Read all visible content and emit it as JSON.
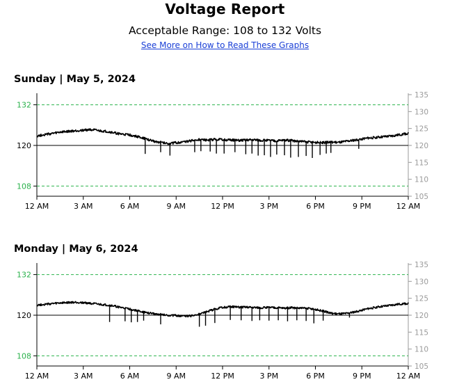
{
  "header": {
    "title": "Voltage Report",
    "subtitle": "Acceptable Range: 108 to 132 Volts",
    "help_link": "See More on How to Read These Graphs"
  },
  "colors": {
    "limit_line": "#2bb24c",
    "nominal_line": "#000000",
    "series": "#000000",
    "right_axis": "#9a9a9a",
    "left_tick": "#2bb24c",
    "link": "#1a3fd6"
  },
  "x_ticks": [
    "12 AM",
    "3 AM",
    "6 AM",
    "9 AM",
    "12 PM",
    "3 PM",
    "6 PM",
    "9 PM",
    "12 AM"
  ],
  "chart_data": [
    {
      "type": "line",
      "title": "Sunday | May 5, 2024",
      "xlabel": "",
      "ylabel": "",
      "ylim": [
        105,
        135
      ],
      "xlim": [
        0,
        24
      ],
      "left_ticks": [
        108,
        120,
        132
      ],
      "right_ticks": [
        105,
        110,
        115,
        120,
        125,
        130,
        135
      ],
      "x_ticks": [
        "12 AM",
        "3 AM",
        "6 AM",
        "9 AM",
        "12 PM",
        "3 PM",
        "6 PM",
        "9 PM",
        "12 AM"
      ],
      "reference_lines": [
        132,
        120,
        108
      ],
      "series": [
        {
          "x": [
            0,
            0.5,
            1,
            1.5,
            2,
            2.5,
            3,
            3.5,
            4,
            4.5,
            5,
            5.5,
            6,
            6.5,
            7,
            7.5,
            8,
            8.5,
            9,
            9.5,
            10,
            10.5,
            11,
            11.5,
            12,
            12.5,
            13,
            13.5,
            14,
            14.5,
            15,
            15.5,
            16,
            16.5,
            17,
            17.5,
            18,
            18.5,
            19,
            19.5,
            20,
            20.5,
            21,
            21.5,
            22,
            22.5,
            23,
            23.5,
            24
          ],
          "values": [
            122.8,
            123.2,
            123.5,
            123.9,
            124.1,
            124.3,
            124.5,
            124.7,
            124.3,
            124.1,
            123.7,
            123.3,
            123.1,
            122.6,
            122.0,
            121.3,
            120.9,
            120.6,
            120.8,
            121.0,
            121.4,
            121.7,
            121.5,
            121.8,
            121.7,
            121.6,
            121.5,
            121.6,
            121.7,
            121.5,
            121.5,
            121.3,
            121.6,
            121.4,
            121.2,
            121.0,
            120.9,
            120.8,
            121.0,
            120.9,
            121.2,
            121.5,
            121.9,
            122.2,
            122.4,
            122.6,
            122.8,
            123.2,
            123.6
          ]
        }
      ],
      "dips": [
        [
          7.0,
          117.5
        ],
        [
          8.0,
          118.0
        ],
        [
          8.6,
          117.0
        ],
        [
          10.2,
          118.0
        ],
        [
          10.6,
          118.3
        ],
        [
          11.2,
          118.2
        ],
        [
          11.6,
          117.6
        ],
        [
          12.1,
          117.6
        ],
        [
          12.8,
          118.0
        ],
        [
          13.5,
          117.4
        ],
        [
          13.9,
          117.6
        ],
        [
          14.3,
          117.0
        ],
        [
          14.7,
          117.1
        ],
        [
          15.1,
          116.6
        ],
        [
          15.5,
          117.3
        ],
        [
          16.0,
          117.1
        ],
        [
          16.4,
          116.4
        ],
        [
          16.9,
          116.6
        ],
        [
          17.4,
          116.9
        ],
        [
          17.8,
          116.3
        ],
        [
          18.3,
          117.2
        ],
        [
          18.7,
          117.6
        ],
        [
          19.0,
          117.8
        ],
        [
          20.8,
          119.0
        ]
      ],
      "noise": 0.35
    },
    {
      "type": "line",
      "title": "Monday | May 6, 2024",
      "xlabel": "",
      "ylabel": "",
      "ylim": [
        105,
        135
      ],
      "xlim": [
        0,
        24
      ],
      "left_ticks": [
        108,
        120,
        132
      ],
      "right_ticks": [
        105,
        110,
        115,
        120,
        125,
        130,
        135
      ],
      "x_ticks": [
        "12 AM",
        "3 AM",
        "6 AM",
        "9 AM",
        "12 PM",
        "3 PM",
        "6 PM",
        "9 PM",
        "12 AM"
      ],
      "reference_lines": [
        132,
        120,
        108
      ],
      "series": [
        {
          "x": [
            0,
            0.5,
            1,
            1.5,
            2,
            2.5,
            3,
            3.5,
            4,
            4.5,
            5,
            5.5,
            6,
            6.5,
            7,
            7.5,
            8,
            8.5,
            9,
            9.5,
            10,
            10.5,
            11,
            11.5,
            12,
            12.5,
            13,
            13.5,
            14,
            14.5,
            15,
            15.5,
            16,
            16.5,
            17,
            17.5,
            18,
            18.5,
            19,
            19.5,
            20,
            20.5,
            21,
            21.5,
            22,
            22.5,
            23,
            23.5,
            24
          ],
          "values": [
            123.0,
            123.2,
            123.4,
            123.6,
            123.7,
            123.8,
            123.7,
            123.5,
            123.2,
            123.0,
            122.7,
            122.2,
            121.8,
            121.3,
            120.8,
            120.5,
            120.2,
            120.0,
            119.9,
            119.7,
            119.8,
            120.3,
            121.0,
            121.8,
            122.3,
            122.5,
            122.4,
            122.4,
            122.3,
            122.2,
            122.3,
            122.2,
            122.1,
            122.2,
            122.1,
            122.0,
            121.7,
            121.2,
            120.6,
            120.4,
            120.5,
            120.9,
            121.5,
            122.0,
            122.4,
            122.7,
            123.0,
            123.3,
            123.5
          ]
        }
      ],
      "dips": [
        [
          4.7,
          118.0
        ],
        [
          5.7,
          118.2
        ],
        [
          6.1,
          117.9
        ],
        [
          6.5,
          118.0
        ],
        [
          6.9,
          118.4
        ],
        [
          8.0,
          117.3
        ],
        [
          10.5,
          116.6
        ],
        [
          10.9,
          116.9
        ],
        [
          11.5,
          117.7
        ],
        [
          12.5,
          118.6
        ],
        [
          13.2,
          118.5
        ],
        [
          13.9,
          118.3
        ],
        [
          14.4,
          118.5
        ],
        [
          15.0,
          118.4
        ],
        [
          15.6,
          118.5
        ],
        [
          16.2,
          118.2
        ],
        [
          16.8,
          118.5
        ],
        [
          17.4,
          118.3
        ],
        [
          17.9,
          117.6
        ],
        [
          18.5,
          118.4
        ],
        [
          20.2,
          119.3
        ]
      ],
      "noise": 0.3
    }
  ]
}
